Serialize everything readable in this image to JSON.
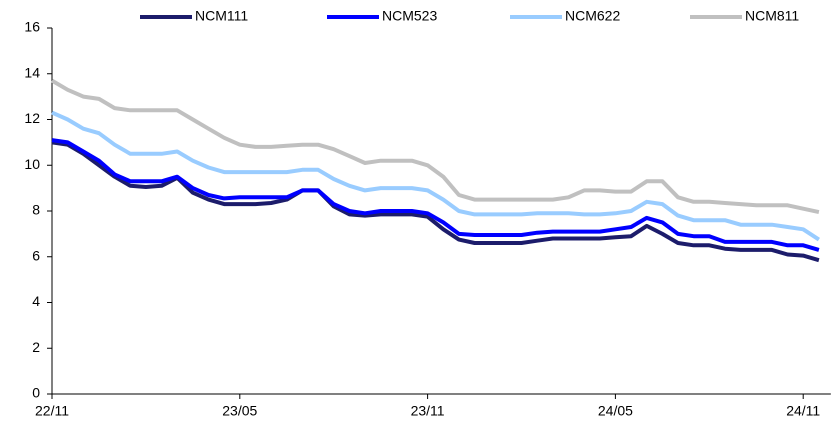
{
  "chart_data": {
    "type": "line",
    "categories": [
      "22/11",
      null,
      null,
      null,
      null,
      null,
      null,
      null,
      null,
      null,
      null,
      null,
      "23/05",
      null,
      null,
      null,
      null,
      null,
      null,
      null,
      null,
      null,
      null,
      null,
      "23/11",
      null,
      null,
      null,
      null,
      null,
      null,
      null,
      null,
      null,
      null,
      null,
      "24/05",
      null,
      null,
      null,
      null,
      null,
      null,
      null,
      null,
      null,
      null,
      null,
      "24/11",
      null
    ],
    "series": [
      {
        "name": "NCM111",
        "color": "#1c1c6b",
        "values": [
          11.0,
          10.9,
          10.5,
          10.0,
          9.5,
          9.1,
          9.05,
          9.1,
          9.45,
          8.8,
          8.5,
          8.3,
          8.3,
          8.3,
          8.35,
          8.5,
          8.9,
          8.9,
          8.2,
          7.85,
          7.8,
          7.85,
          7.85,
          7.85,
          7.75,
          7.2,
          6.75,
          6.6,
          6.6,
          6.6,
          6.6,
          6.7,
          6.8,
          6.8,
          6.8,
          6.8,
          6.85,
          6.9,
          7.35,
          7.0,
          6.6,
          6.5,
          6.5,
          6.35,
          6.3,
          6.3,
          6.3,
          6.1,
          6.05,
          5.85
        ]
      },
      {
        "name": "NCM523",
        "color": "#0000ff",
        "values": [
          11.1,
          11.0,
          10.6,
          10.2,
          9.6,
          9.3,
          9.3,
          9.3,
          9.5,
          9.0,
          8.7,
          8.55,
          8.6,
          8.6,
          8.6,
          8.6,
          8.9,
          8.9,
          8.3,
          8.0,
          7.9,
          8.0,
          8.0,
          8.0,
          7.9,
          7.5,
          7.0,
          6.95,
          6.95,
          6.95,
          6.95,
          7.05,
          7.1,
          7.1,
          7.1,
          7.1,
          7.2,
          7.3,
          7.7,
          7.5,
          7.0,
          6.9,
          6.9,
          6.65,
          6.65,
          6.65,
          6.65,
          6.5,
          6.5,
          6.3
        ]
      },
      {
        "name": "NCM622",
        "color": "#99ccff",
        "values": [
          12.3,
          12.0,
          11.6,
          11.4,
          10.9,
          10.5,
          10.5,
          10.5,
          10.6,
          10.2,
          9.9,
          9.7,
          9.7,
          9.7,
          9.7,
          9.7,
          9.8,
          9.8,
          9.4,
          9.1,
          8.9,
          9.0,
          9.0,
          9.0,
          8.9,
          8.5,
          8.0,
          7.85,
          7.85,
          7.85,
          7.85,
          7.9,
          7.9,
          7.9,
          7.85,
          7.85,
          7.9,
          8.0,
          8.4,
          8.3,
          7.8,
          7.6,
          7.6,
          7.6,
          7.4,
          7.4,
          7.4,
          7.3,
          7.2,
          6.75
        ]
      },
      {
        "name": "NCM811",
        "color": "#c0c0c0",
        "values": [
          13.7,
          13.3,
          13.0,
          12.9,
          12.5,
          12.4,
          12.4,
          12.4,
          12.4,
          12.0,
          11.6,
          11.2,
          10.9,
          10.8,
          10.8,
          10.85,
          10.9,
          10.9,
          10.7,
          10.4,
          10.1,
          10.2,
          10.2,
          10.2,
          10.0,
          9.5,
          8.7,
          8.5,
          8.5,
          8.5,
          8.5,
          8.5,
          8.5,
          8.6,
          8.9,
          8.9,
          8.85,
          8.85,
          9.3,
          9.3,
          8.6,
          8.4,
          8.4,
          8.35,
          8.3,
          8.25,
          8.25,
          8.25,
          8.1,
          7.95
        ]
      }
    ],
    "ylim": [
      0,
      16
    ],
    "yticks": [
      0,
      2,
      4,
      6,
      8,
      10,
      12,
      14,
      16
    ],
    "legend": "top"
  }
}
